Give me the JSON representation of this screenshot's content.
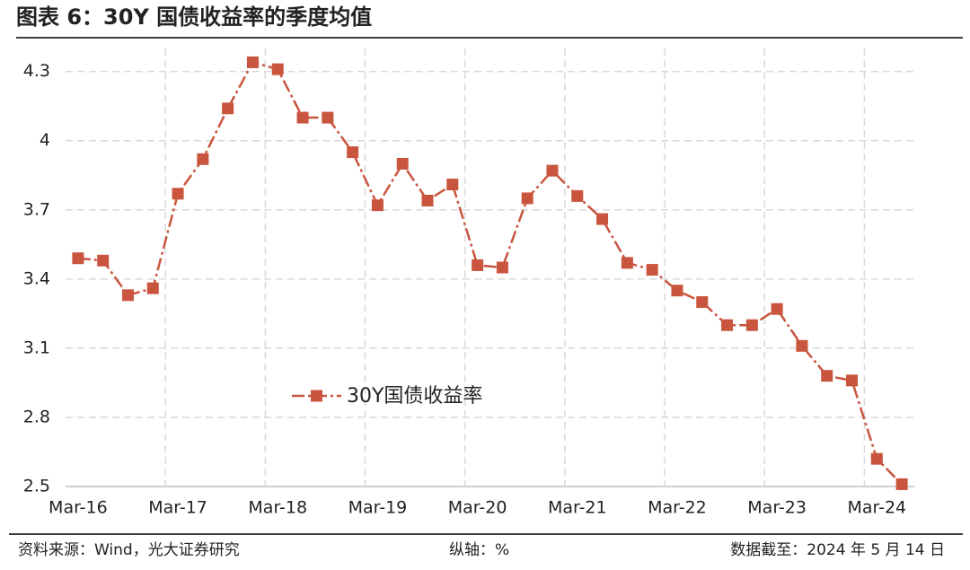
{
  "chart_data": {
    "type": "line",
    "title": "图表 6：30Y 国债收益率的季度均值",
    "categories": [
      "Mar-16",
      null,
      null,
      null,
      "Mar-17",
      null,
      null,
      null,
      "Mar-18",
      null,
      null,
      null,
      "Mar-19",
      null,
      null,
      null,
      "Mar-20",
      null,
      null,
      null,
      "Mar-21",
      null,
      null,
      null,
      "Mar-22",
      null,
      null,
      null,
      "Mar-23",
      null,
      null,
      null,
      "Mar-24",
      null
    ],
    "series": [
      {
        "name": "30Y国债收益率",
        "color": "#c9553e",
        "values": [
          3.49,
          3.48,
          3.33,
          3.36,
          3.77,
          3.92,
          4.14,
          4.34,
          4.31,
          4.1,
          4.1,
          3.95,
          3.72,
          3.9,
          3.74,
          3.81,
          3.46,
          3.45,
          3.75,
          3.87,
          3.76,
          3.66,
          3.47,
          3.44,
          3.35,
          3.3,
          3.2,
          3.2,
          3.27,
          3.11,
          2.98,
          2.96,
          2.62,
          2.51
        ]
      }
    ],
    "ylim": [
      2.5,
      4.4
    ],
    "yticks": [
      2.5,
      2.8,
      3.1,
      3.4,
      3.7,
      4,
      4.3
    ],
    "grid": true
  },
  "footer": {
    "source": "资料来源：Wind，光大证券研究",
    "axis_unit": "纵轴：%",
    "date": "数据截至：2024 年 5 月 14 日"
  }
}
